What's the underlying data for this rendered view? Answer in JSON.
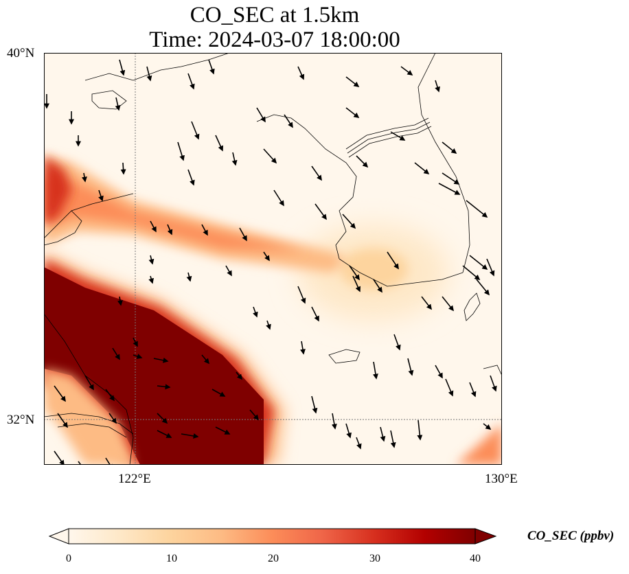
{
  "title": {
    "line1": "CO_SEC at 1.5km",
    "line2": "Time: 2024-03-07 18:00:00"
  },
  "axes": {
    "lat_labels": [
      "40°N",
      "32°N"
    ],
    "lon_labels": [
      "122°E",
      "130°E"
    ],
    "lon_range": [
      120,
      130
    ],
    "lat_range": [
      31,
      40
    ],
    "gridlines": "dotted",
    "gridline_lon": 122,
    "gridline_lat": 32
  },
  "colorbar": {
    "label": "CO_SEC (ppbv)",
    "ticks": [
      "0",
      "10",
      "20",
      "30",
      "40"
    ],
    "range": [
      0,
      40
    ],
    "extend": "both",
    "colormap": "OrRd",
    "colors": [
      "#fff7ec",
      "#fee8c8",
      "#fdd49e",
      "#fdbb84",
      "#fc8d59",
      "#ef6548",
      "#d7301f",
      "#b30000",
      "#7f0000"
    ]
  },
  "chart_data": {
    "type": "heatmap",
    "variable": "CO_SEC",
    "units": "ppbv",
    "level": "1.5km",
    "time": "2024-03-07 18:00:00",
    "features": {
      "high_plume": "dense plume >= 40 ppbv over the southwest of the domain (approx. 120-124.5°E, 31-34°N)",
      "band": "elongated band ~15-25 ppbv stretching from ~120°E 36.5°N east-southeast to ~127°E 34.5°N",
      "secondary_peak": "weak maximum ~10 ppbv near 127°E 35°N",
      "background": "near 0 ppbv across north and east"
    },
    "wind_vectors": "black arrows, predominantly from north-northwest toward south-southeast"
  }
}
